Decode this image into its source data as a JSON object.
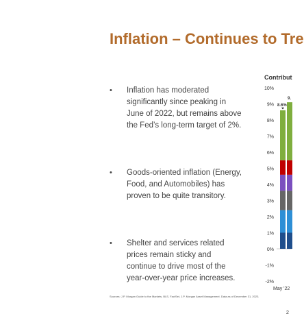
{
  "slide": {
    "title": "Inflation – Continues to Tre",
    "bullets": [
      "Inflation has moderated significantly since peaking in June of 2022, but remains above the Fed’s long-term target of 2%.",
      "Goods-oriented inflation (Energy, Food, and Automobiles) has proven to be quite transitory.",
      "Shelter and services related prices remain sticky and continue to drive most of the year-over-year price increases."
    ],
    "sources": "Sources: J.P. Morgan Guide to the Markets, BLS, FactSet, J.P. Morgan Asset Management. Data as of December 31, 2023.",
    "page_number": "2"
  },
  "chart_data": {
    "type": "bar",
    "title": "Contribut",
    "y_tick_labels": [
      "10%",
      "9%",
      "8%",
      "7%",
      "6%",
      "5%",
      "4%",
      "3%",
      "2%",
      "1%",
      "0%",
      "-1%",
      "-2%"
    ],
    "ylim": [
      -2,
      10
    ],
    "categories": [
      "May '22"
    ],
    "data_labels": [
      "8.6%",
      "9."
    ],
    "bars": [
      {
        "category": "May '22",
        "total": 8.6,
        "segments": [
          {
            "color": "#1f4e8c",
            "value": 1.0
          },
          {
            "color": "#2e8fd6",
            "value": 1.4
          },
          {
            "color": "#666666",
            "value": 1.2
          },
          {
            "color": "#7b4fbf",
            "value": 1.0
          },
          {
            "color": "#c00000",
            "value": 0.9
          },
          {
            "color": "#7fae3e",
            "value": 3.1
          }
        ]
      },
      {
        "category": "",
        "total": 9.1,
        "segments": [
          {
            "color": "#1f4e8c",
            "value": 1.0
          },
          {
            "color": "#2e8fd6",
            "value": 1.4
          },
          {
            "color": "#666666",
            "value": 1.2
          },
          {
            "color": "#7b4fbf",
            "value": 1.0
          },
          {
            "color": "#c00000",
            "value": 0.9
          },
          {
            "color": "#7fae3e",
            "value": 3.6
          }
        ]
      }
    ]
  }
}
